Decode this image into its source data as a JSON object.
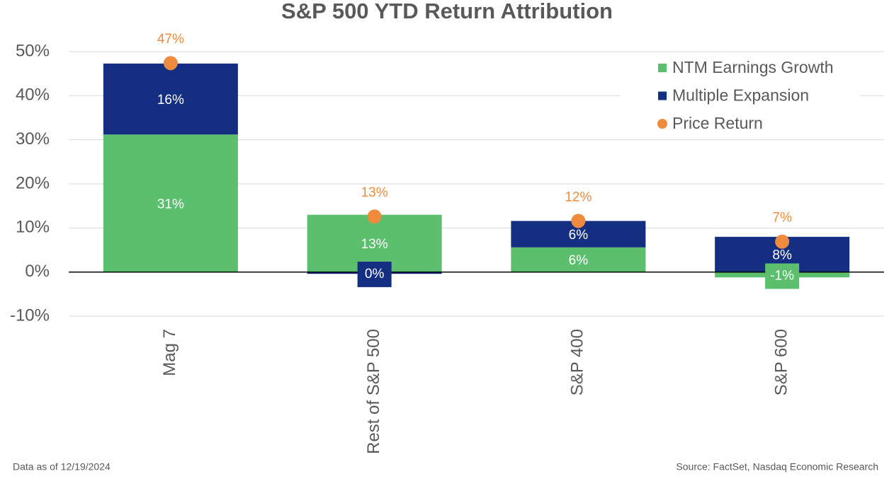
{
  "chart_data": {
    "type": "bar",
    "stacked": true,
    "title": "S&P 500 YTD Return Attribution",
    "categories": [
      "Mag 7",
      "Rest of S&P 500",
      "S&P 400",
      "S&P 600"
    ],
    "series": [
      {
        "name": "NTM Earnings Growth",
        "color": "#5bbf6e",
        "values": [
          31.2,
          13.0,
          5.6,
          -1.2
        ],
        "value_labels": [
          "31%",
          "13%",
          "6%",
          "-1%"
        ]
      },
      {
        "name": "Multiple Expansion",
        "color": "#142f82",
        "values": [
          16.1,
          -0.4,
          6.0,
          8.0
        ],
        "value_labels": [
          "16%",
          "0%",
          "6%",
          "8%"
        ]
      },
      {
        "name": "Price Return",
        "type": "scatter",
        "color": "#ee8b3f",
        "values": [
          47.4,
          12.6,
          11.6,
          6.9
        ],
        "value_labels": [
          "47%",
          "13%",
          "12%",
          "7%"
        ]
      }
    ],
    "ylim": [
      -10,
      50
    ],
    "yticks": [
      {
        "value": -10,
        "label": "-10%"
      },
      {
        "value": 0,
        "label": "0%"
      },
      {
        "value": 10,
        "label": "10%"
      },
      {
        "value": 20,
        "label": "20%"
      },
      {
        "value": 30,
        "label": "30%"
      },
      {
        "value": 40,
        "label": "40%"
      },
      {
        "value": 50,
        "label": "50%"
      }
    ],
    "grid": true,
    "legend": "upper right",
    "footnote": "Data as of  12/19/2024",
    "source": "Source: FactSet, Nasdaq Economic Research"
  }
}
